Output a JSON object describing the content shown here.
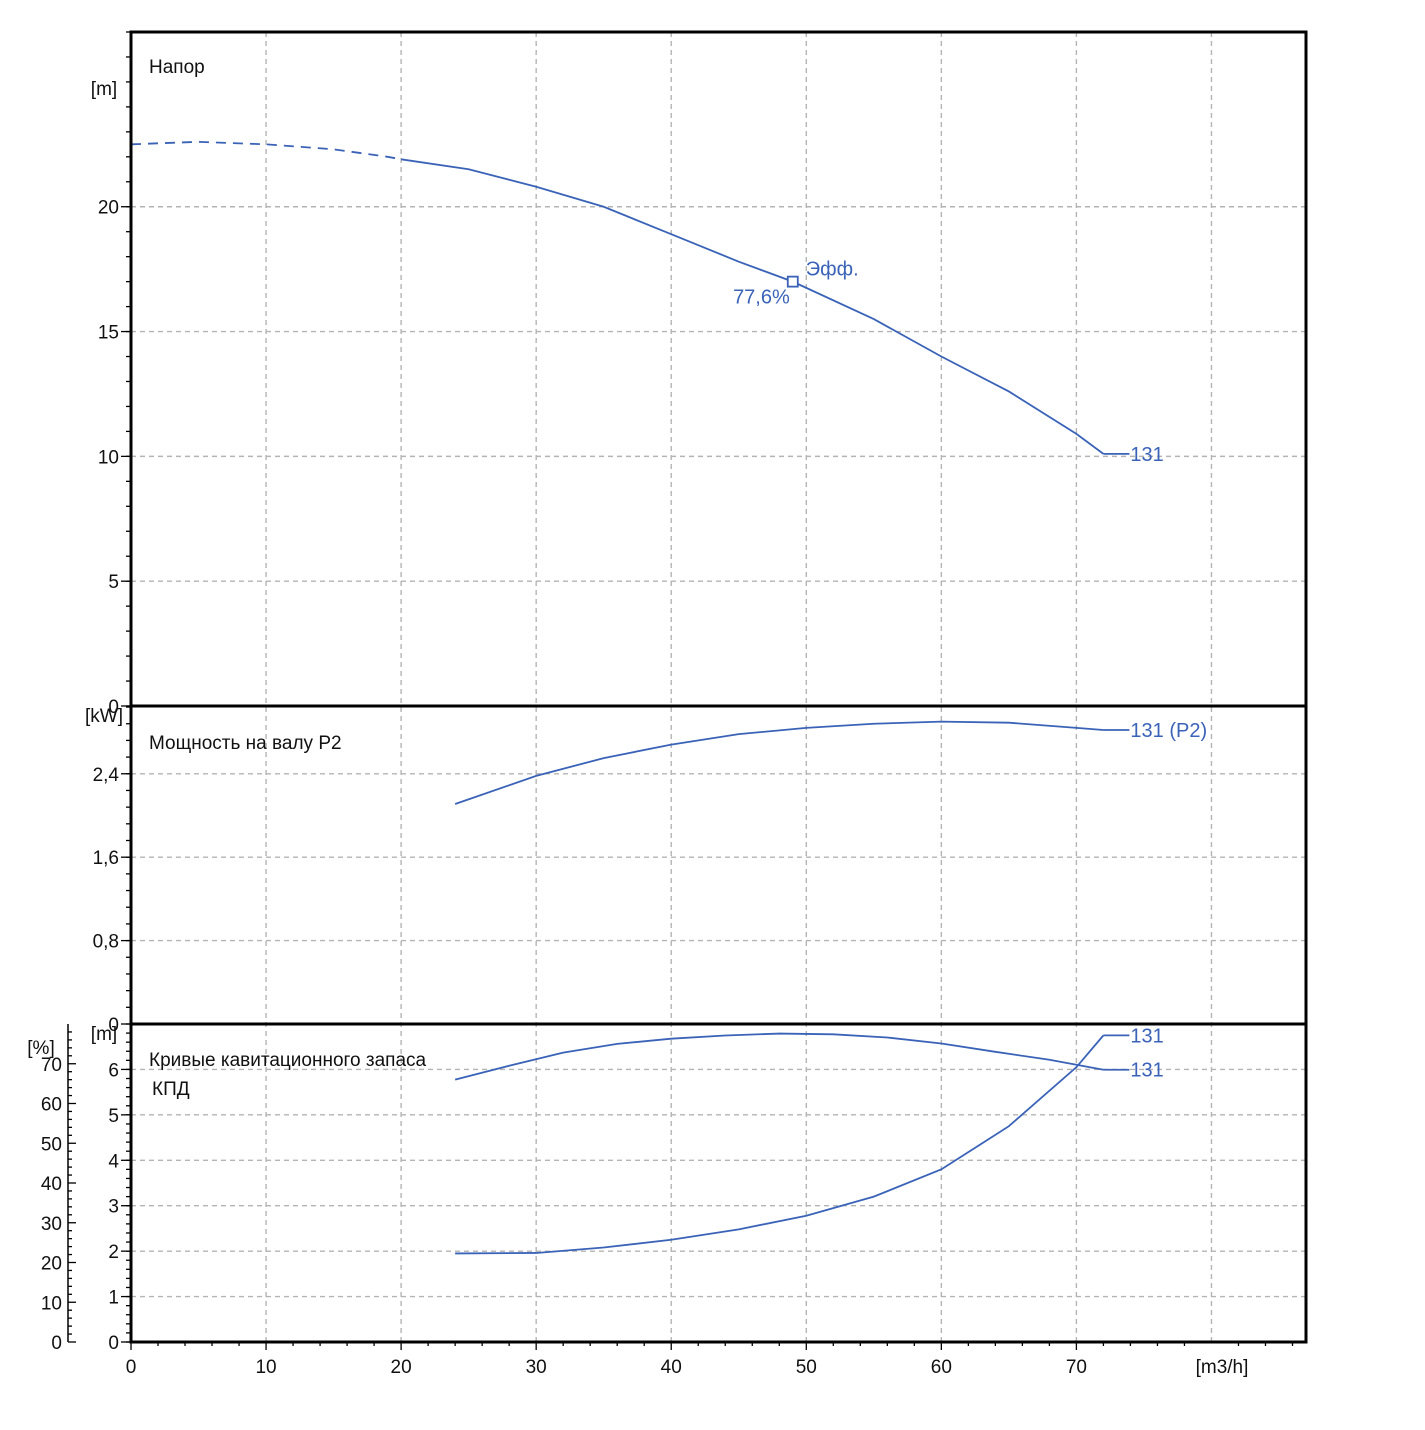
{
  "colors": {
    "curve": "#3a63b8",
    "grid": "#b4b4b4",
    "frame": "#000000",
    "text": "#111111"
  },
  "x_axis": {
    "label": "[m3/h]",
    "range": [
      0,
      87
    ],
    "ticks": [
      0,
      10,
      20,
      30,
      40,
      50,
      60,
      70
    ],
    "tick_labels": [
      "0",
      "10",
      "20",
      "30",
      "40",
      "50",
      "60",
      "70"
    ]
  },
  "chart_data": [
    {
      "type": "line",
      "title": "Напор",
      "ylabel": "[m]",
      "ylim": [
        0,
        27
      ],
      "yticks": [
        0,
        5,
        10,
        15,
        20
      ],
      "ytick_labels": [
        "0",
        "5",
        "10",
        "15",
        "20"
      ],
      "grid": true,
      "series": [
        {
          "name": "131",
          "x": [
            0,
            5,
            10,
            15,
            19,
            20,
            25,
            30,
            35,
            40,
            45,
            49,
            55,
            60,
            65,
            70,
            72
          ],
          "y": [
            22.5,
            22.6,
            22.5,
            22.3,
            22.0,
            21.9,
            21.5,
            20.8,
            20.0,
            18.9,
            17.8,
            17.0,
            15.5,
            14.0,
            12.6,
            10.9,
            10.1
          ],
          "dashed_until_x": 20
        }
      ],
      "annotations": [
        {
          "text": "Эфф.",
          "x": 49,
          "y": 17.0,
          "marker": "square"
        },
        {
          "text": "77,6%",
          "x": 49,
          "y": 17.0
        }
      ]
    },
    {
      "type": "line",
      "title": "Мощность на валу P2",
      "ylabel": "[kW]",
      "ylim": [
        0,
        3.05
      ],
      "yticks": [
        0,
        0.8,
        1.6,
        2.4
      ],
      "ytick_labels": [
        "0",
        "0,8",
        "1,6",
        "2,4"
      ],
      "grid": true,
      "series": [
        {
          "name": "131 (P2)",
          "x": [
            24,
            30,
            35,
            40,
            45,
            50,
            55,
            60,
            65,
            70,
            72
          ],
          "y": [
            2.11,
            2.38,
            2.55,
            2.68,
            2.78,
            2.84,
            2.88,
            2.9,
            2.89,
            2.84,
            2.82
          ]
        }
      ]
    },
    {
      "type": "line",
      "title": "Кривые кавитационного запаса",
      "subtitle": "КПД",
      "ylabel": "[m]",
      "ylabel_left": "[%]",
      "ylim": [
        0,
        7.0
      ],
      "yticks": [
        0,
        1,
        2,
        3,
        4,
        5,
        6
      ],
      "ytick_labels": [
        "0",
        "1",
        "2",
        "3",
        "4",
        "5",
        "6"
      ],
      "ylim_left": [
        0,
        80
      ],
      "yticks_left": [
        0,
        10,
        20,
        30,
        40,
        50,
        60,
        70
      ],
      "ytick_labels_left": [
        "0",
        "10",
        "20",
        "30",
        "40",
        "50",
        "60",
        "70"
      ],
      "grid": true,
      "series": [
        {
          "name": "131",
          "axis": "left",
          "x": [
            24,
            28,
            32,
            36,
            40,
            44,
            48,
            52,
            56,
            60,
            64,
            68,
            72
          ],
          "y": [
            66.0,
            69.5,
            72.8,
            75.0,
            76.3,
            77.1,
            77.6,
            77.4,
            76.6,
            75.1,
            73.0,
            71.0,
            68.5
          ]
        },
        {
          "name": "131",
          "axis": "right",
          "x": [
            24,
            30,
            35,
            40,
            45,
            50,
            55,
            60,
            65,
            70,
            72
          ],
          "y": [
            1.95,
            1.96,
            2.08,
            2.25,
            2.48,
            2.78,
            3.2,
            3.8,
            4.75,
            6.05,
            6.75
          ]
        }
      ]
    }
  ]
}
